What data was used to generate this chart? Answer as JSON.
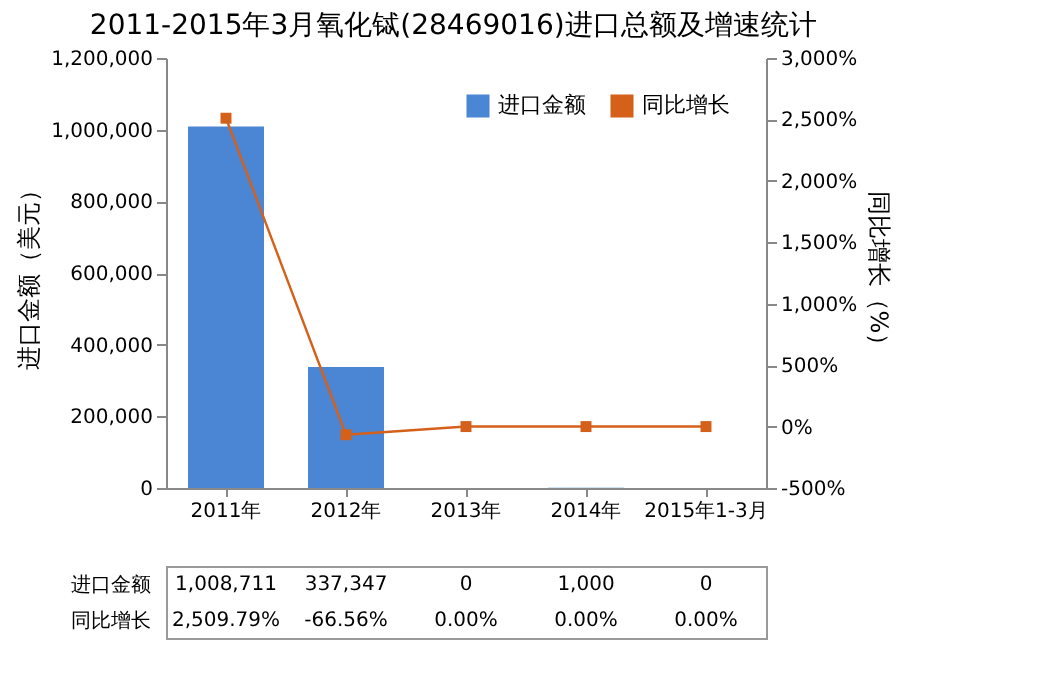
{
  "chart_data": {
    "type": "bar",
    "title": "2011-2015年3月氧化铽(28469016)进口总额及增速统计",
    "ylabel": "进口金额（美元）",
    "y2label": "同比增长（%）",
    "categories": [
      "2011年",
      "2012年",
      "2013年",
      "2014年",
      "2015年1-3月"
    ],
    "series": [
      {
        "name": "进口金额",
        "color": "#4a86d4",
        "values": [
          1008711,
          337347,
          0,
          1000,
          0
        ],
        "value_labels": [
          "1,008,711",
          "337,347",
          "0",
          "1,000",
          "0"
        ]
      },
      {
        "name": "同比增长",
        "type": "line",
        "axis": "y2",
        "color": "#d4601a",
        "values": [
          2509.79,
          -66.56,
          0,
          0,
          0
        ],
        "value_labels": [
          "2,509.79%",
          "-66.56%",
          "0.00%",
          "0.00%",
          "0.00%"
        ]
      }
    ],
    "ylim": [
      0,
      1200000
    ],
    "yticks": [
      0,
      {
        "value": 200000,
        "label": "200,000"
      },
      {
        "value": 400000,
        "label": "400,000"
      },
      {
        "value": 600000,
        "label": "600,000"
      },
      {
        "value": 800000,
        "label": "800,000"
      },
      {
        "value": 1000000,
        "label": "1,000,000"
      },
      {
        "value": 1200000,
        "label": "1,200,000"
      }
    ],
    "y2lim": [
      -500,
      3000
    ],
    "y2ticks": [
      {
        "value": -500,
        "label": "-500%"
      },
      {
        "value": 0,
        "label": "0%"
      },
      {
        "value": 500,
        "label": "500%"
      },
      {
        "value": 1000,
        "label": "1,000%"
      },
      {
        "value": 1500,
        "label": "1,500%"
      },
      {
        "value": 2000,
        "label": "2,000%"
      },
      {
        "value": 2500,
        "label": "2,500%"
      },
      {
        "value": 3000,
        "label": "3,000%"
      }
    ],
    "legend": "top right",
    "marker": "square"
  }
}
